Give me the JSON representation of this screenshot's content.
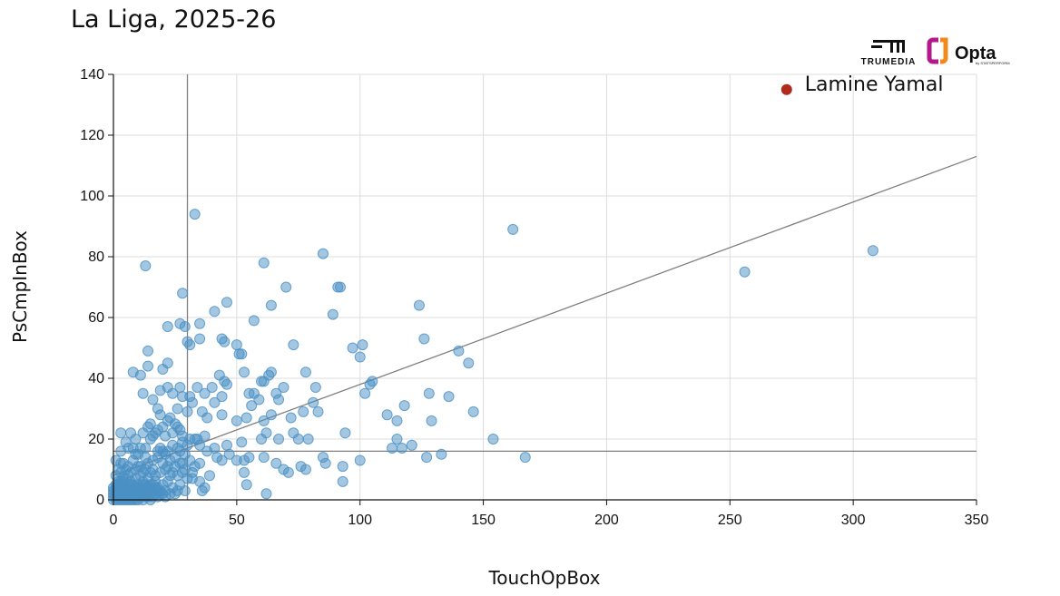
{
  "page": {
    "title": "La Liga, 2025-26"
  },
  "logos": {
    "trumedia": "TRUMEDIA",
    "opta": "Opta",
    "opta_sub": "by STATSPERFORM"
  },
  "chart_data": {
    "type": "scatter",
    "title": "La Liga, 2025-26",
    "xlabel": "TouchOpBox",
    "ylabel": "PsCmpInBox",
    "xlim": [
      0,
      350
    ],
    "ylim": [
      0,
      140
    ],
    "xticks": [
      0,
      50,
      100,
      150,
      200,
      250,
      300,
      350
    ],
    "yticks": [
      0,
      20,
      40,
      60,
      80,
      100,
      120,
      140
    ],
    "grid": true,
    "reference_lines": {
      "vertical_x": 30,
      "horizontal_y": 16,
      "trend": [
        [
          0,
          8
        ],
        [
          350,
          113
        ]
      ]
    },
    "colors": {
      "points": "#4a90c4",
      "highlight": "#b02a1e",
      "reference": "#7f7f7f",
      "grid": "#dddddd"
    },
    "highlight": {
      "label": "Lamine Yamal",
      "x": 273,
      "y": 135
    },
    "points": [
      [
        13,
        77
      ],
      [
        33,
        94
      ],
      [
        61,
        78
      ],
      [
        85,
        81
      ],
      [
        162,
        89
      ],
      [
        256,
        75
      ],
      [
        308,
        82
      ],
      [
        28,
        68
      ],
      [
        46,
        65
      ],
      [
        64,
        64
      ],
      [
        70,
        70
      ],
      [
        91,
        70
      ],
      [
        92,
        70
      ],
      [
        89,
        61
      ],
      [
        124,
        64
      ],
      [
        22,
        57
      ],
      [
        27,
        58
      ],
      [
        29,
        57
      ],
      [
        35,
        58
      ],
      [
        41,
        62
      ],
      [
        57,
        59
      ],
      [
        30,
        52
      ],
      [
        31,
        51
      ],
      [
        14,
        49
      ],
      [
        35,
        53
      ],
      [
        44,
        53
      ],
      [
        45,
        52
      ],
      [
        50,
        51
      ],
      [
        51,
        48
      ],
      [
        52,
        48
      ],
      [
        73,
        51
      ],
      [
        126,
        53
      ],
      [
        14,
        44
      ],
      [
        20,
        43
      ],
      [
        22,
        45
      ],
      [
        8,
        42
      ],
      [
        11,
        41
      ],
      [
        43,
        41
      ],
      [
        53,
        42
      ],
      [
        63,
        41
      ],
      [
        64,
        42
      ],
      [
        78,
        42
      ],
      [
        97,
        50
      ],
      [
        101,
        51
      ],
      [
        100,
        47
      ],
      [
        140,
        49
      ],
      [
        144,
        45
      ],
      [
        12,
        35
      ],
      [
        16,
        33
      ],
      [
        19,
        36
      ],
      [
        22,
        37
      ],
      [
        24,
        35
      ],
      [
        27,
        37
      ],
      [
        28,
        34
      ],
      [
        31,
        34
      ],
      [
        34,
        37
      ],
      [
        37,
        35
      ],
      [
        40,
        37
      ],
      [
        44,
        34
      ],
      [
        45,
        39
      ],
      [
        46,
        38
      ],
      [
        55,
        35
      ],
      [
        57,
        35
      ],
      [
        60,
        39
      ],
      [
        61,
        39
      ],
      [
        66,
        35
      ],
      [
        69,
        37
      ],
      [
        67,
        33
      ],
      [
        82,
        37
      ],
      [
        81,
        32
      ],
      [
        102,
        35
      ],
      [
        104,
        38
      ],
      [
        105,
        39
      ],
      [
        118,
        31
      ],
      [
        128,
        35
      ],
      [
        136,
        34
      ],
      [
        18,
        30
      ],
      [
        19,
        28
      ],
      [
        23,
        27
      ],
      [
        26,
        30
      ],
      [
        30,
        29
      ],
      [
        32,
        32
      ],
      [
        36,
        29
      ],
      [
        38,
        27
      ],
      [
        41,
        32
      ],
      [
        44,
        28
      ],
      [
        50,
        26
      ],
      [
        54,
        27
      ],
      [
        56,
        31
      ],
      [
        59,
        33
      ],
      [
        61,
        26
      ],
      [
        64,
        28
      ],
      [
        72,
        27
      ],
      [
        77,
        29
      ],
      [
        83,
        29
      ],
      [
        100,
        13
      ],
      [
        111,
        28
      ],
      [
        115,
        26
      ],
      [
        129,
        26
      ],
      [
        146,
        29
      ],
      [
        154,
        20
      ],
      [
        167,
        14
      ],
      [
        15,
        25
      ],
      [
        17,
        22
      ],
      [
        22,
        26
      ],
      [
        26,
        24
      ],
      [
        28,
        21
      ],
      [
        31,
        20
      ],
      [
        34,
        20
      ],
      [
        37,
        21
      ],
      [
        41,
        17
      ],
      [
        46,
        18
      ],
      [
        52,
        19
      ],
      [
        60,
        20
      ],
      [
        62,
        22
      ],
      [
        67,
        20
      ],
      [
        73,
        22
      ],
      [
        75,
        20
      ],
      [
        79,
        20
      ],
      [
        94,
        22
      ],
      [
        113,
        17
      ],
      [
        115,
        20
      ],
      [
        117,
        17
      ],
      [
        121,
        18
      ],
      [
        133,
        15
      ],
      [
        127,
        14
      ],
      [
        3,
        22
      ],
      [
        5,
        19
      ],
      [
        6,
        17
      ],
      [
        8,
        17
      ],
      [
        10,
        15
      ],
      [
        13,
        17
      ],
      [
        15,
        20
      ],
      [
        18,
        16
      ],
      [
        20,
        16
      ],
      [
        22,
        16
      ],
      [
        24,
        18
      ],
      [
        27,
        16
      ],
      [
        29,
        15
      ],
      [
        3,
        16
      ],
      [
        30,
        18
      ],
      [
        33,
        20
      ],
      [
        35,
        18
      ],
      [
        38,
        16
      ],
      [
        42,
        14
      ],
      [
        44,
        13
      ],
      [
        47,
        15
      ],
      [
        50,
        13
      ],
      [
        53,
        13
      ],
      [
        55,
        14
      ],
      [
        61,
        14
      ],
      [
        66,
        12
      ],
      [
        69,
        10
      ],
      [
        71,
        9
      ],
      [
        76,
        11
      ],
      [
        78,
        10
      ],
      [
        85,
        14
      ],
      [
        86,
        12
      ],
      [
        93,
        11
      ],
      [
        93,
        6
      ],
      [
        53,
        9
      ],
      [
        54,
        5
      ],
      [
        62,
        2
      ],
      [
        35,
        6
      ],
      [
        37,
        4
      ],
      [
        28,
        9
      ],
      [
        32,
        7
      ],
      [
        36,
        3
      ],
      [
        1,
        13
      ],
      [
        2,
        10
      ],
      [
        4,
        12
      ],
      [
        6,
        11
      ],
      [
        8,
        13
      ],
      [
        10,
        11
      ],
      [
        12,
        9
      ],
      [
        14,
        12
      ],
      [
        16,
        10
      ],
      [
        18,
        14
      ],
      [
        20,
        12
      ],
      [
        22,
        11
      ],
      [
        24,
        9
      ],
      [
        26,
        8
      ],
      [
        28,
        12
      ],
      [
        30,
        7
      ],
      [
        32,
        9
      ],
      [
        1,
        8
      ],
      [
        2,
        6
      ],
      [
        3,
        9
      ],
      [
        4,
        5
      ],
      [
        5,
        7
      ],
      [
        6,
        8
      ],
      [
        7,
        6
      ],
      [
        8,
        4
      ],
      [
        9,
        7
      ],
      [
        10,
        5
      ],
      [
        11,
        8
      ],
      [
        12,
        6
      ],
      [
        13,
        4
      ],
      [
        14,
        7
      ],
      [
        15,
        5
      ],
      [
        16,
        3
      ],
      [
        17,
        6
      ],
      [
        18,
        4
      ],
      [
        19,
        2
      ],
      [
        20,
        5
      ],
      [
        21,
        3
      ],
      [
        22,
        6
      ],
      [
        24,
        4
      ],
      [
        25,
        2
      ],
      [
        27,
        5
      ],
      [
        29,
        3
      ],
      [
        0,
        0
      ],
      [
        0,
        1
      ],
      [
        0,
        2
      ],
      [
        1,
        0
      ],
      [
        1,
        1
      ],
      [
        1,
        2
      ],
      [
        1,
        3
      ],
      [
        2,
        0
      ],
      [
        2,
        1
      ],
      [
        2,
        2
      ],
      [
        2,
        3
      ],
      [
        2,
        4
      ],
      [
        3,
        0
      ],
      [
        3,
        1
      ],
      [
        3,
        2
      ],
      [
        3,
        3
      ],
      [
        4,
        0
      ],
      [
        4,
        1
      ],
      [
        4,
        2
      ],
      [
        4,
        3
      ],
      [
        5,
        0
      ],
      [
        5,
        1
      ],
      [
        5,
        2
      ],
      [
        5,
        3
      ],
      [
        5,
        4
      ],
      [
        6,
        0
      ],
      [
        6,
        1
      ],
      [
        6,
        2
      ],
      [
        6,
        3
      ],
      [
        7,
        0
      ],
      [
        7,
        1
      ],
      [
        7,
        2
      ],
      [
        7,
        3
      ],
      [
        7,
        4
      ],
      [
        8,
        0
      ],
      [
        8,
        1
      ],
      [
        8,
        2
      ],
      [
        8,
        3
      ],
      [
        9,
        0
      ],
      [
        9,
        1
      ],
      [
        9,
        2
      ],
      [
        9,
        3
      ],
      [
        10,
        0
      ],
      [
        10,
        1
      ],
      [
        10,
        2
      ],
      [
        10,
        3
      ],
      [
        11,
        1
      ],
      [
        11,
        2
      ],
      [
        11,
        4
      ],
      [
        12,
        0
      ],
      [
        12,
        2
      ],
      [
        12,
        3
      ],
      [
        13,
        1
      ],
      [
        13,
        2
      ],
      [
        14,
        1
      ],
      [
        14,
        3
      ],
      [
        15,
        0
      ],
      [
        15,
        2
      ],
      [
        16,
        1
      ],
      [
        17,
        2
      ],
      [
        18,
        1
      ],
      [
        19,
        3
      ],
      [
        20,
        2
      ],
      [
        21,
        1
      ],
      [
        23,
        2
      ],
      [
        26,
        3
      ],
      [
        0,
        3
      ],
      [
        0,
        4
      ],
      [
        1,
        4
      ],
      [
        1,
        5
      ],
      [
        2,
        5
      ],
      [
        3,
        5
      ],
      [
        3,
        6
      ],
      [
        4,
        6
      ],
      [
        4,
        7
      ],
      [
        6,
        5
      ],
      [
        7,
        5
      ],
      [
        8,
        5
      ],
      [
        9,
        4
      ],
      [
        10,
        4
      ],
      [
        11,
        3
      ],
      [
        12,
        5
      ],
      [
        13,
        5
      ],
      [
        14,
        4
      ],
      [
        15,
        4
      ],
      [
        16,
        5
      ],
      [
        17,
        4
      ],
      [
        18,
        3
      ],
      [
        3,
        12
      ],
      [
        5,
        10
      ],
      [
        7,
        9
      ],
      [
        9,
        10
      ],
      [
        11,
        11
      ],
      [
        13,
        10
      ],
      [
        15,
        9
      ],
      [
        17,
        8
      ],
      [
        19,
        9
      ],
      [
        21,
        10
      ],
      [
        23,
        8
      ],
      [
        25,
        11
      ],
      [
        27,
        12
      ],
      [
        29,
        10
      ],
      [
        31,
        13
      ],
      [
        33,
        11
      ],
      [
        35,
        12
      ],
      [
        39,
        8
      ],
      [
        9,
        15
      ],
      [
        11,
        17
      ],
      [
        13,
        14
      ],
      [
        16,
        13
      ],
      [
        19,
        17
      ],
      [
        21,
        15
      ],
      [
        23,
        13
      ],
      [
        25,
        14
      ],
      [
        26,
        17
      ],
      [
        28,
        19
      ],
      [
        7,
        22
      ],
      [
        9,
        20
      ],
      [
        12,
        22
      ],
      [
        14,
        24
      ],
      [
        16,
        21
      ],
      [
        18,
        23
      ],
      [
        20,
        24
      ],
      [
        21,
        21
      ],
      [
        24,
        22
      ],
      [
        25,
        25
      ],
      [
        27,
        23
      ]
    ]
  }
}
